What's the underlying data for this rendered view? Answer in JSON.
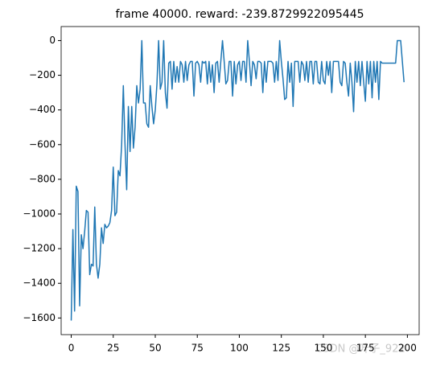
{
  "chart_data": {
    "type": "line",
    "title": "frame 40000. reward: -239.8729922095445",
    "watermark": "CSDN @叶子_922",
    "series": [
      {
        "color": "#1f77b4",
        "values": [
          -1615,
          -1090,
          -1560,
          -840,
          -870,
          -1530,
          -1120,
          -1200,
          -1100,
          -980,
          -990,
          -1350,
          -1290,
          -1300,
          -960,
          -1290,
          -1370,
          -1290,
          -1080,
          -1170,
          -1060,
          -1080,
          -1070,
          -1050,
          -980,
          -730,
          -1010,
          -990,
          -750,
          -780,
          -600,
          -260,
          -600,
          -860,
          -380,
          -640,
          -380,
          -620,
          -500,
          -260,
          -360,
          -280,
          0,
          -360,
          -360,
          -480,
          -500,
          -260,
          -380,
          -480,
          -400,
          -250,
          0,
          -280,
          -240,
          0,
          -300,
          -390,
          -130,
          -120,
          -280,
          -120,
          -240,
          -150,
          -240,
          -120,
          -140,
          -240,
          -120,
          -230,
          -140,
          -120,
          -120,
          -320,
          -130,
          -120,
          -140,
          -240,
          -120,
          -130,
          -120,
          -250,
          -120,
          -240,
          -140,
          -300,
          -130,
          -120,
          -240,
          -120,
          0,
          -120,
          -250,
          -230,
          -120,
          -120,
          -320,
          -120,
          -250,
          -140,
          -120,
          -230,
          -120,
          -120,
          -240,
          0,
          -120,
          -260,
          -120,
          -140,
          -220,
          -120,
          -120,
          -130,
          -300,
          -120,
          -240,
          -120,
          -120,
          -120,
          -130,
          -240,
          -120,
          -230,
          0,
          -120,
          -220,
          -340,
          -330,
          -120,
          -240,
          -130,
          -380,
          -120,
          -120,
          -120,
          -240,
          -120,
          -140,
          -230,
          -120,
          -240,
          -120,
          -120,
          -250,
          -120,
          -120,
          -240,
          -250,
          -120,
          -230,
          -250,
          -120,
          -200,
          -120,
          -300,
          -120,
          -120,
          -120,
          -120,
          -240,
          -260,
          -120,
          -130,
          -240,
          -320,
          -130,
          -240,
          -410,
          -120,
          -240,
          -120,
          -260,
          -120,
          -240,
          -350,
          -120,
          -250,
          -120,
          -330,
          -120,
          -240,
          -120,
          -340,
          -120,
          -130,
          -130,
          -130,
          -130,
          -130,
          -130,
          -130,
          -130,
          -130,
          0,
          0,
          0,
          -120,
          -239.8729922095445
        ]
      }
    ],
    "xlim": [
      -6,
      207
    ],
    "xticks": [
      0,
      25,
      50,
      75,
      100,
      125,
      150,
      175,
      200
    ],
    "ylim": [
      -1696,
      81
    ],
    "yticks": [
      0,
      {
        "value": -200,
        "label": "−200"
      },
      {
        "value": -400,
        "label": "−400"
      },
      {
        "value": -600,
        "label": "−600"
      },
      {
        "value": -800,
        "label": "−800"
      },
      {
        "value": -1000,
        "label": "−1000"
      },
      {
        "value": -1200,
        "label": "−1200"
      },
      {
        "value": -1400,
        "label": "−1400"
      },
      {
        "value": -1600,
        "label": "−1600"
      }
    ]
  }
}
